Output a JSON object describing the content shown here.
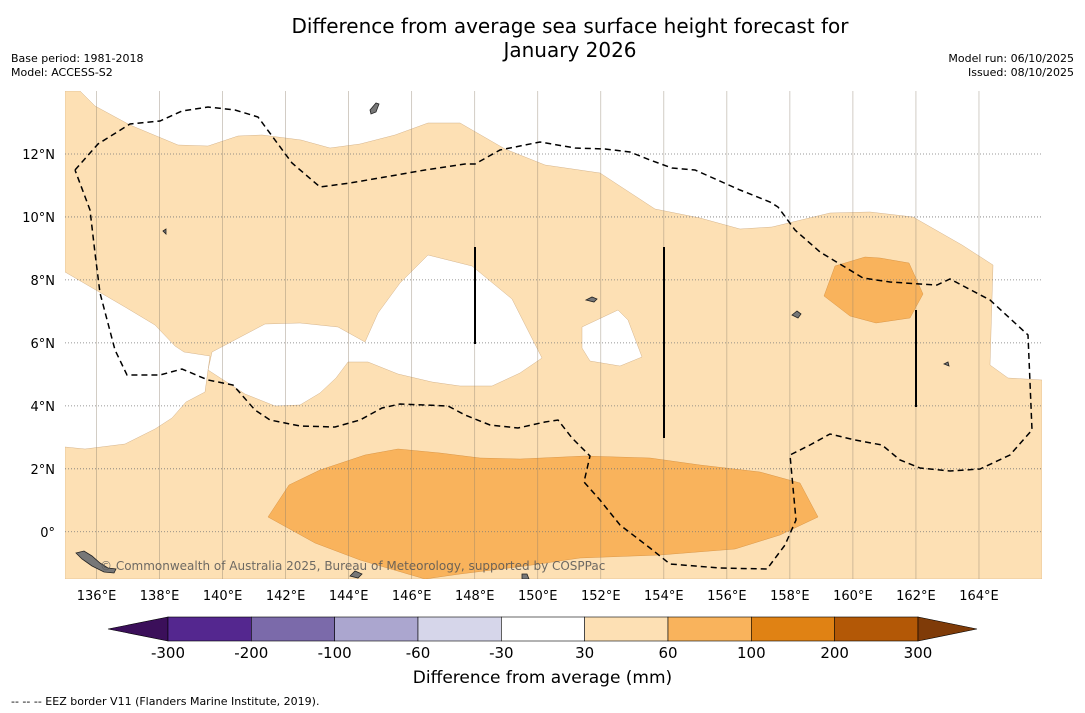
{
  "title": {
    "line1": "Difference from average sea surface height forecast for",
    "line2": "January 2026"
  },
  "meta_left": {
    "base_period": "Base period: 1981-2018",
    "model": "Model: ACCESS-S2"
  },
  "meta_right": {
    "model_run": "Model run: 06/10/2025",
    "issued": "Issued: 08/10/2025"
  },
  "map": {
    "lon_range": [
      135.0,
      166.0
    ],
    "lat_range": [
      -1.5,
      14.0
    ],
    "lon_ticks": [
      "136°E",
      "138°E",
      "140°E",
      "142°E",
      "144°E",
      "146°E",
      "148°E",
      "150°E",
      "152°E",
      "154°E",
      "156°E",
      "158°E",
      "160°E",
      "162°E",
      "164°E"
    ],
    "lat_ticks": [
      "12°N",
      "10°N",
      "8°N",
      "6°N",
      "4°N",
      "2°N",
      "0°"
    ],
    "copyright": "© Commonwealth of Australia 2025, Bureau of Meteorology, supported by COSPPac",
    "colors": {
      "band_30_60": "#fde0b4",
      "band_60_100": "#f9b35c",
      "eez_line": "#000000",
      "land": "#777777"
    }
  },
  "colorbar": {
    "tick_labels": [
      "-300",
      "-200",
      "-100",
      "-60",
      "-30",
      "30",
      "60",
      "100",
      "200",
      "300"
    ],
    "colors": [
      "#3b0f5a",
      "#54278f",
      "#7b6aaa",
      "#aba6cf",
      "#d6d6ea",
      "#ffffff",
      "#fde0b4",
      "#f9b35c",
      "#e08214",
      "#b35806",
      "#7f3b08"
    ],
    "label": "Difference from average (mm)"
  },
  "footnote": "-- -- -- EEZ border V11 (Flanders Marine Institute, 2019)."
}
